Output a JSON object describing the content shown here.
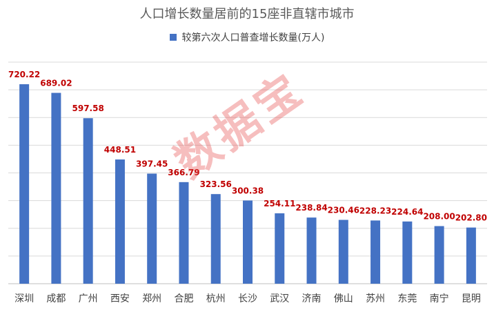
{
  "chart_data": {
    "type": "bar",
    "title": "人口增长数量居前的15座非直辖市城市",
    "legend": {
      "placement": "top-center",
      "entries": [
        "较第六次人口普查增长数量(万人)"
      ]
    },
    "grid": true,
    "ylim": [
      0,
      800
    ],
    "categories": [
      "深圳",
      "成都",
      "广州",
      "西安",
      "郑州",
      "合肥",
      "杭州",
      "长沙",
      "武汉",
      "济南",
      "佛山",
      "苏州",
      "东莞",
      "南宁",
      "昆明"
    ],
    "series": [
      {
        "name": "较第六次人口普查增长数量(万人)",
        "color": "#4472C4",
        "values": [
          720.22,
          689.02,
          597.58,
          448.51,
          397.45,
          366.79,
          323.56,
          300.38,
          254.11,
          238.84,
          230.46,
          228.23,
          224.64,
          208.0,
          202.8
        ],
        "labels": [
          "720.22",
          "689.02",
          "597.58",
          "448.51",
          "397.45",
          "366.79",
          "323.56",
          "300.38",
          "254.11",
          "238.84",
          "230.46",
          "228.23",
          "224.64",
          "208.00",
          "202.80"
        ]
      }
    ],
    "label_color": "#C00000"
  },
  "watermark": "数据宝"
}
